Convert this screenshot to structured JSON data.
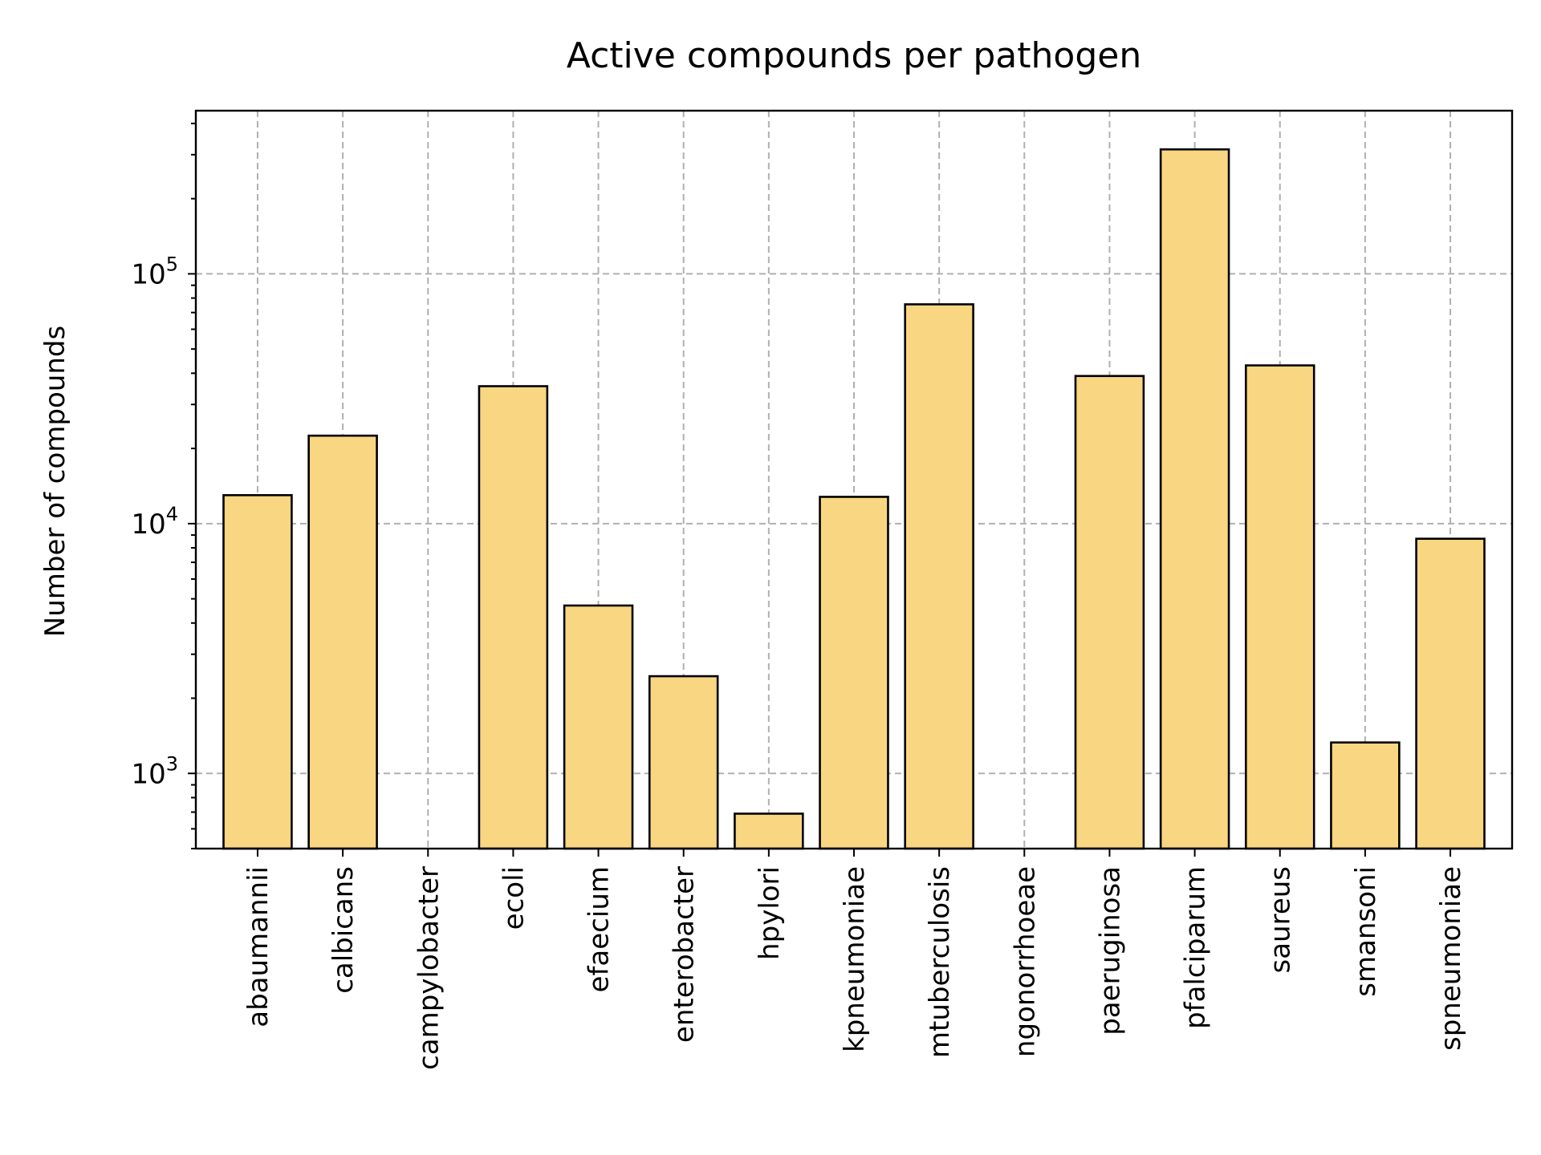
{
  "chart_data": {
    "type": "bar",
    "title": "Active compounds per pathogen",
    "xlabel": "",
    "ylabel": "Number of compounds",
    "y_scale": "log",
    "ylim": [
      500,
      450000
    ],
    "y_ticks": [
      {
        "value": 1000,
        "base": "10",
        "exponent": "3"
      },
      {
        "value": 10000,
        "base": "10",
        "exponent": "4"
      },
      {
        "value": 100000,
        "base": "10",
        "exponent": "5"
      }
    ],
    "grid": true,
    "bar_color": "#f9d682",
    "bar_edge_color": "#000000",
    "grid_color": "#b0b0b0",
    "categories": [
      "abaumannii",
      "calbicans",
      "campylobacter",
      "ecoli",
      "efaecium",
      "enterobacter",
      "hpylori",
      "kpneumoniae",
      "mtuberculosis",
      "ngonorrhoeae",
      "paeruginosa",
      "pfalciparum",
      "saureus",
      "smansoni",
      "spneumoniae"
    ],
    "values": [
      13000,
      22500,
      null,
      35500,
      4700,
      2450,
      690,
      12800,
      75500,
      null,
      39000,
      315000,
      43000,
      1330,
      8700
    ]
  }
}
